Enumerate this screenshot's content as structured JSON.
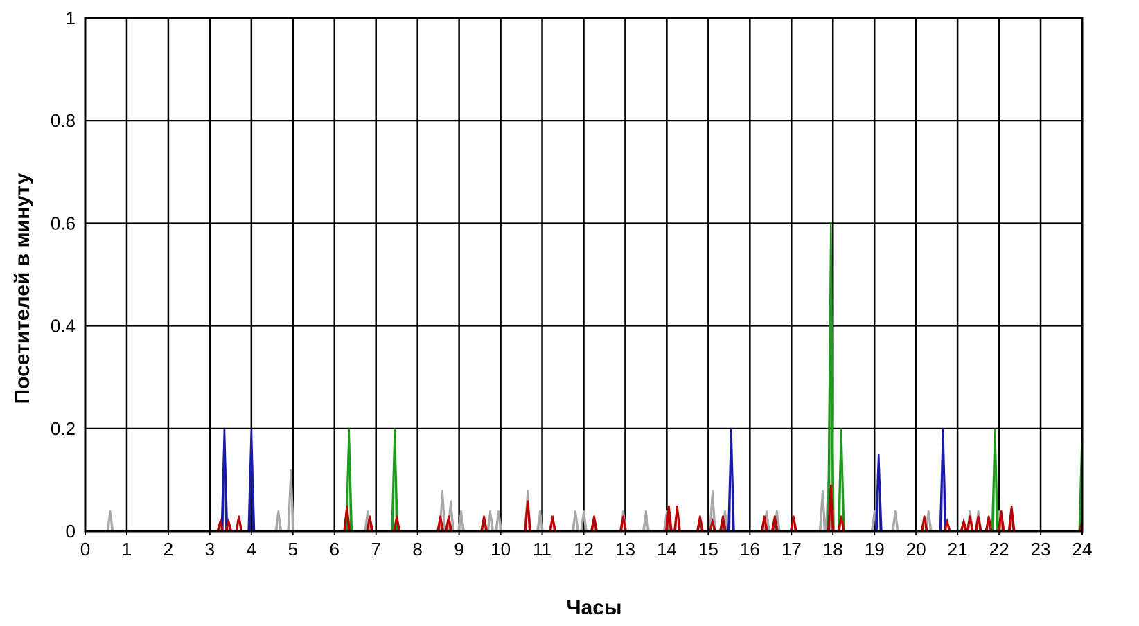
{
  "chart_data": {
    "type": "line",
    "title": "",
    "xlabel": "Часы",
    "ylabel": "Посетителей в минуту",
    "xlim": [
      0,
      24
    ],
    "ylim": [
      0,
      1
    ],
    "x_ticks": [
      "0",
      "1",
      "2",
      "3",
      "4",
      "5",
      "6",
      "7",
      "8",
      "9",
      "10",
      "11",
      "12",
      "13",
      "14",
      "15",
      "16",
      "17",
      "18",
      "19",
      "20",
      "21",
      "22",
      "23",
      "24"
    ],
    "y_ticks": [
      "0",
      "0.2",
      "0.4",
      "0.6",
      "0.8",
      "1"
    ],
    "grid": true,
    "legend": "none",
    "series": [
      {
        "color": "#a8a8a8",
        "peaks": [
          [
            0.6,
            0.04
          ],
          [
            4.65,
            0.04
          ],
          [
            4.95,
            0.12
          ],
          [
            6.8,
            0.04
          ],
          [
            8.6,
            0.08
          ],
          [
            8.8,
            0.06
          ],
          [
            9.05,
            0.04
          ],
          [
            9.75,
            0.04
          ],
          [
            9.95,
            0.04
          ],
          [
            10.65,
            0.08
          ],
          [
            10.95,
            0.04
          ],
          [
            11.8,
            0.04
          ],
          [
            12.0,
            0.04
          ],
          [
            12.95,
            0.04
          ],
          [
            13.5,
            0.04
          ],
          [
            14.0,
            0.04
          ],
          [
            15.1,
            0.08
          ],
          [
            15.4,
            0.04
          ],
          [
            16.4,
            0.04
          ],
          [
            16.65,
            0.04
          ],
          [
            17.75,
            0.08
          ],
          [
            17.9,
            0.12
          ],
          [
            19.0,
            0.04
          ],
          [
            19.5,
            0.04
          ],
          [
            20.3,
            0.04
          ],
          [
            21.3,
            0.04
          ],
          [
            21.5,
            0.04
          ],
          [
            22.0,
            0.04
          ]
        ]
      },
      {
        "color": "#1a1aa8",
        "peaks": [
          [
            3.35,
            0.2
          ],
          [
            4.0,
            0.2
          ],
          [
            15.55,
            0.2
          ],
          [
            19.1,
            0.15
          ],
          [
            20.65,
            0.2
          ]
        ]
      },
      {
        "color": "#1f9a1f",
        "peaks": [
          [
            6.35,
            0.2
          ],
          [
            7.45,
            0.2
          ],
          [
            17.95,
            0.6
          ],
          [
            18.2,
            0.2
          ],
          [
            21.9,
            0.2
          ],
          [
            24.0,
            0.2
          ]
        ]
      },
      {
        "color": "#b80000",
        "peaks": [
          [
            3.25,
            0.02
          ],
          [
            3.45,
            0.02
          ],
          [
            3.7,
            0.03
          ],
          [
            6.3,
            0.05
          ],
          [
            6.85,
            0.03
          ],
          [
            7.5,
            0.03
          ],
          [
            8.55,
            0.03
          ],
          [
            8.75,
            0.03
          ],
          [
            9.6,
            0.03
          ],
          [
            10.65,
            0.06
          ],
          [
            11.25,
            0.03
          ],
          [
            12.25,
            0.03
          ],
          [
            12.95,
            0.03
          ],
          [
            14.05,
            0.05
          ],
          [
            14.25,
            0.05
          ],
          [
            14.8,
            0.03
          ],
          [
            15.1,
            0.02
          ],
          [
            15.35,
            0.03
          ],
          [
            16.35,
            0.03
          ],
          [
            16.6,
            0.03
          ],
          [
            17.05,
            0.03
          ],
          [
            17.95,
            0.09
          ],
          [
            18.2,
            0.03
          ],
          [
            20.2,
            0.03
          ],
          [
            20.75,
            0.02
          ],
          [
            21.15,
            0.02
          ],
          [
            21.3,
            0.03
          ],
          [
            21.5,
            0.03
          ],
          [
            21.75,
            0.03
          ],
          [
            22.05,
            0.04
          ],
          [
            22.3,
            0.05
          ],
          [
            24.0,
            0.02
          ]
        ]
      }
    ]
  }
}
